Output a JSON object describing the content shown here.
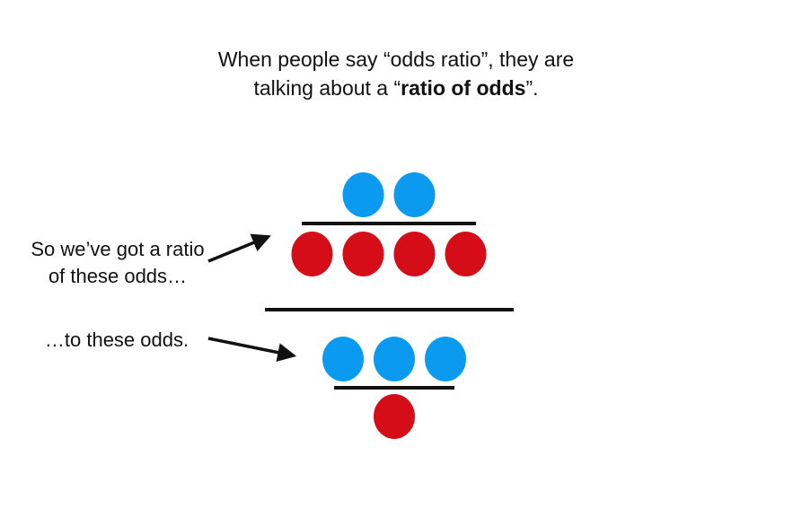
{
  "title": {
    "line1": "When people say “odds ratio”, they are",
    "line2_prefix": "talking about a “",
    "line2_bold": "ratio of odds",
    "line2_suffix": "”."
  },
  "annotations": {
    "first_line1": "So we’ve got a ratio",
    "first_line2": "of these odds…",
    "second": "…to these odds."
  },
  "colors": {
    "blue": "#0a9bf0",
    "red": "#d40d18",
    "line": "#111111"
  },
  "odds": {
    "top": {
      "numerator_blue": 2,
      "denominator_red": 4
    },
    "bottom": {
      "numerator_blue": 3,
      "denominator_red": 1
    }
  }
}
